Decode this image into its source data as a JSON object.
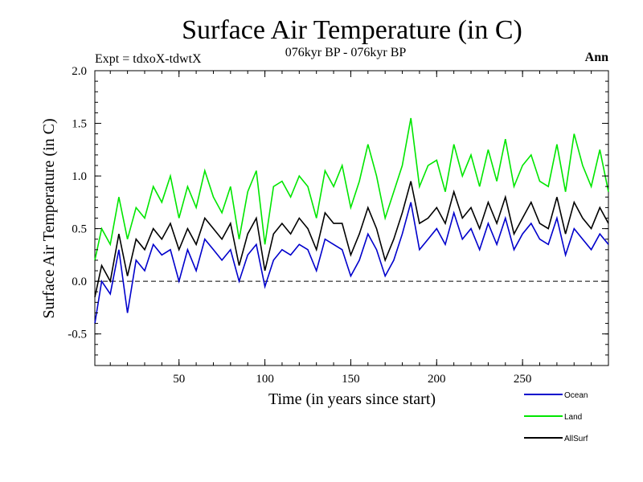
{
  "header": {
    "title": "Surface Air Temperature (in C)",
    "subtitle": "076kyr BP - 076kyr BP",
    "experiment": "Expt = tdxoX-tdwtX",
    "season": "Ann"
  },
  "chart_data": {
    "type": "line",
    "title": "Surface Air Temperature (in C)",
    "xlabel": "Time (in years since start)",
    "ylabel": "Surface Air Temperature (in C)",
    "xlim": [
      1,
      300
    ],
    "ylim": [
      -0.8,
      2.0
    ],
    "xticks": [
      50,
      100,
      150,
      200,
      250
    ],
    "xtick_labels": [
      "50",
      "100",
      "150",
      "200",
      "250"
    ],
    "yticks": [
      -0.5,
      0.0,
      0.5,
      1.0,
      1.5,
      2.0
    ],
    "ytick_labels": [
      "-0.5",
      "0.0",
      "0.5",
      "1.0",
      "1.5",
      "2.0"
    ],
    "reference_line": 0.0,
    "grid": false,
    "legend_position": "bottom-right",
    "x": [
      1,
      5,
      10,
      15,
      20,
      25,
      30,
      35,
      40,
      45,
      50,
      55,
      60,
      65,
      70,
      75,
      80,
      85,
      90,
      95,
      100,
      105,
      110,
      115,
      120,
      125,
      130,
      135,
      140,
      145,
      150,
      155,
      160,
      165,
      170,
      175,
      180,
      185,
      190,
      195,
      200,
      205,
      210,
      215,
      220,
      225,
      230,
      235,
      240,
      245,
      250,
      255,
      260,
      265,
      270,
      275,
      280,
      285,
      290,
      295,
      300
    ],
    "series": [
      {
        "name": "Ocean",
        "color": "#0000cc",
        "values": [
          -0.4,
          0.0,
          -0.12,
          0.3,
          -0.3,
          0.2,
          0.1,
          0.35,
          0.25,
          0.3,
          0.0,
          0.3,
          0.1,
          0.4,
          0.3,
          0.2,
          0.3,
          0.0,
          0.25,
          0.35,
          -0.05,
          0.2,
          0.3,
          0.25,
          0.35,
          0.3,
          0.1,
          0.4,
          0.35,
          0.3,
          0.05,
          0.2,
          0.45,
          0.3,
          0.05,
          0.2,
          0.45,
          0.75,
          0.3,
          0.4,
          0.5,
          0.35,
          0.65,
          0.4,
          0.5,
          0.3,
          0.55,
          0.35,
          0.6,
          0.3,
          0.45,
          0.55,
          0.4,
          0.35,
          0.6,
          0.25,
          0.5,
          0.4,
          0.3,
          0.45,
          0.35
        ]
      },
      {
        "name": "Land",
        "color": "#00e600",
        "values": [
          0.2,
          0.5,
          0.35,
          0.8,
          0.4,
          0.7,
          0.6,
          0.9,
          0.75,
          1.0,
          0.6,
          0.9,
          0.7,
          1.05,
          0.8,
          0.65,
          0.9,
          0.4,
          0.85,
          1.05,
          0.35,
          0.9,
          0.95,
          0.8,
          1.0,
          0.9,
          0.6,
          1.05,
          0.9,
          1.1,
          0.7,
          0.95,
          1.3,
          1.0,
          0.6,
          0.85,
          1.1,
          1.55,
          0.9,
          1.1,
          1.15,
          0.85,
          1.3,
          1.0,
          1.2,
          0.9,
          1.25,
          0.95,
          1.35,
          0.9,
          1.1,
          1.2,
          0.95,
          0.9,
          1.3,
          0.85,
          1.4,
          1.1,
          0.9,
          1.25,
          0.85
        ]
      },
      {
        "name": "AllSurf",
        "color": "#000000",
        "values": [
          -0.15,
          0.15,
          0.0,
          0.45,
          0.05,
          0.4,
          0.3,
          0.5,
          0.4,
          0.55,
          0.3,
          0.5,
          0.35,
          0.6,
          0.5,
          0.4,
          0.55,
          0.15,
          0.45,
          0.6,
          0.1,
          0.45,
          0.55,
          0.45,
          0.6,
          0.5,
          0.3,
          0.65,
          0.55,
          0.55,
          0.25,
          0.45,
          0.7,
          0.5,
          0.2,
          0.4,
          0.65,
          0.95,
          0.55,
          0.6,
          0.7,
          0.55,
          0.85,
          0.6,
          0.7,
          0.5,
          0.75,
          0.55,
          0.8,
          0.45,
          0.6,
          0.75,
          0.55,
          0.5,
          0.8,
          0.45,
          0.75,
          0.6,
          0.5,
          0.7,
          0.55
        ]
      }
    ]
  }
}
